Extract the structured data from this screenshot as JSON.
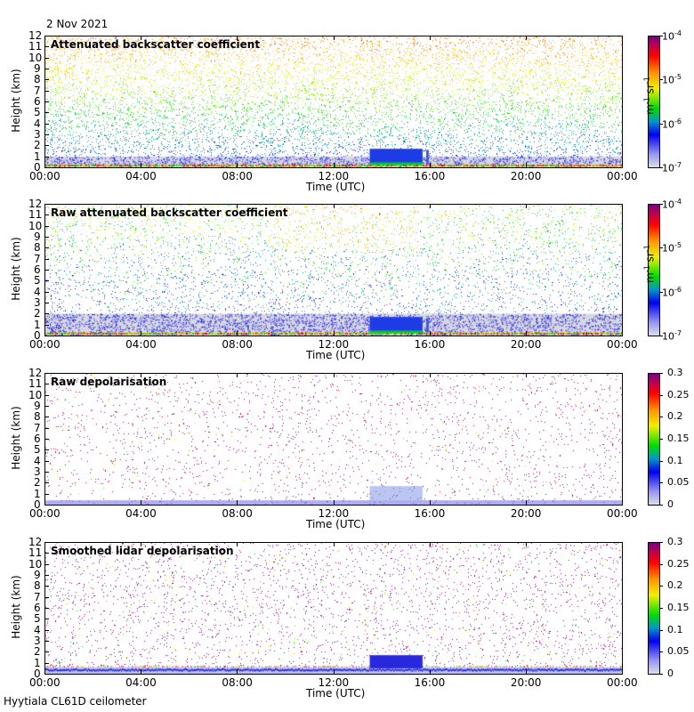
{
  "date": "2 Nov 2021",
  "footer": "Hyytiala CL61D ceilometer",
  "chart_data": [
    {
      "type": "heatmap",
      "title": "Attenuated backscatter coefficient",
      "xlabel": "Time (UTC)",
      "ylabel": "Height (km)",
      "xticks": [
        "00:00",
        "04:00",
        "08:00",
        "12:00",
        "16:00",
        "20:00",
        "00:00"
      ],
      "yticks": [
        "0",
        "1",
        "2",
        "3",
        "4",
        "5",
        "6",
        "7",
        "8",
        "9",
        "10",
        "11",
        "12"
      ],
      "ylim": [
        0,
        12
      ],
      "xlim_hours": [
        0,
        24
      ],
      "colorbar": {
        "scale": "log",
        "ticks": [
          "10-7",
          "10-6",
          "10-5",
          "10-4"
        ],
        "tick_base": "10",
        "tick_exp": [
          "-7",
          "-6",
          "-5",
          "-4"
        ],
        "unit": "m-1 sr-1",
        "range": [
          1e-07,
          0.0001
        ]
      },
      "features": {
        "cloud_start_h": 13.5,
        "cloud_end_h": 15.7,
        "cloud_base_km": 0.4,
        "cloud_top_km": 1.7
      },
      "style": "sparse"
    },
    {
      "type": "heatmap",
      "title": "Raw attenuated backscatter coefficient",
      "xlabel": "Time (UTC)",
      "ylabel": "Height (km)",
      "xticks": [
        "00:00",
        "04:00",
        "08:00",
        "12:00",
        "16:00",
        "20:00",
        "00:00"
      ],
      "yticks": [
        "0",
        "1",
        "2",
        "3",
        "4",
        "5",
        "6",
        "7",
        "8",
        "9",
        "10",
        "11",
        "12"
      ],
      "ylim": [
        0,
        12
      ],
      "xlim_hours": [
        0,
        24
      ],
      "colorbar": {
        "scale": "log",
        "ticks": [
          "10-7",
          "10-6",
          "10-5",
          "10-4"
        ],
        "tick_base": "10",
        "tick_exp": [
          "-7",
          "-6",
          "-5",
          "-4"
        ],
        "unit": "m-1 sr-1",
        "range": [
          1e-07,
          0.0001
        ]
      },
      "features": {
        "cloud_start_h": 13.5,
        "cloud_end_h": 15.7,
        "cloud_base_km": 0.4,
        "cloud_top_km": 1.7
      },
      "style": "dense"
    },
    {
      "type": "heatmap",
      "title": "Raw depolarisation",
      "xlabel": "Time (UTC)",
      "ylabel": "Height (km)",
      "xticks": [
        "00:00",
        "04:00",
        "08:00",
        "12:00",
        "16:00",
        "20:00",
        "00:00"
      ],
      "yticks": [
        "0",
        "1",
        "2",
        "3",
        "4",
        "5",
        "6",
        "7",
        "8",
        "9",
        "10",
        "11",
        "12"
      ],
      "ylim": [
        0,
        12
      ],
      "xlim_hours": [
        0,
        24
      ],
      "colorbar": {
        "scale": "linear",
        "ticks": [
          "0",
          "0.05",
          "0.1",
          "0.15",
          "0.2",
          "0.25",
          "0.3"
        ],
        "range": [
          0,
          0.3
        ]
      },
      "style": "depol"
    },
    {
      "type": "heatmap",
      "title": "Smoothed lidar depolarisation",
      "xlabel": "Time (UTC)",
      "ylabel": "Height (km)",
      "xticks": [
        "00:00",
        "04:00",
        "08:00",
        "12:00",
        "16:00",
        "20:00",
        "00:00"
      ],
      "yticks": [
        "0",
        "1",
        "2",
        "3",
        "4",
        "5",
        "6",
        "7",
        "8",
        "9",
        "10",
        "11",
        "12"
      ],
      "ylim": [
        0,
        12
      ],
      "xlim_hours": [
        0,
        24
      ],
      "colorbar": {
        "scale": "linear",
        "ticks": [
          "0",
          "0.05",
          "0.1",
          "0.15",
          "0.2",
          "0.25",
          "0.3"
        ],
        "range": [
          0,
          0.3
        ]
      },
      "features": {
        "cloud_start_h": 13.5,
        "cloud_end_h": 15.7,
        "cloud_base_km": 0.4,
        "cloud_top_km": 1.7
      },
      "style": "smooth"
    }
  ]
}
